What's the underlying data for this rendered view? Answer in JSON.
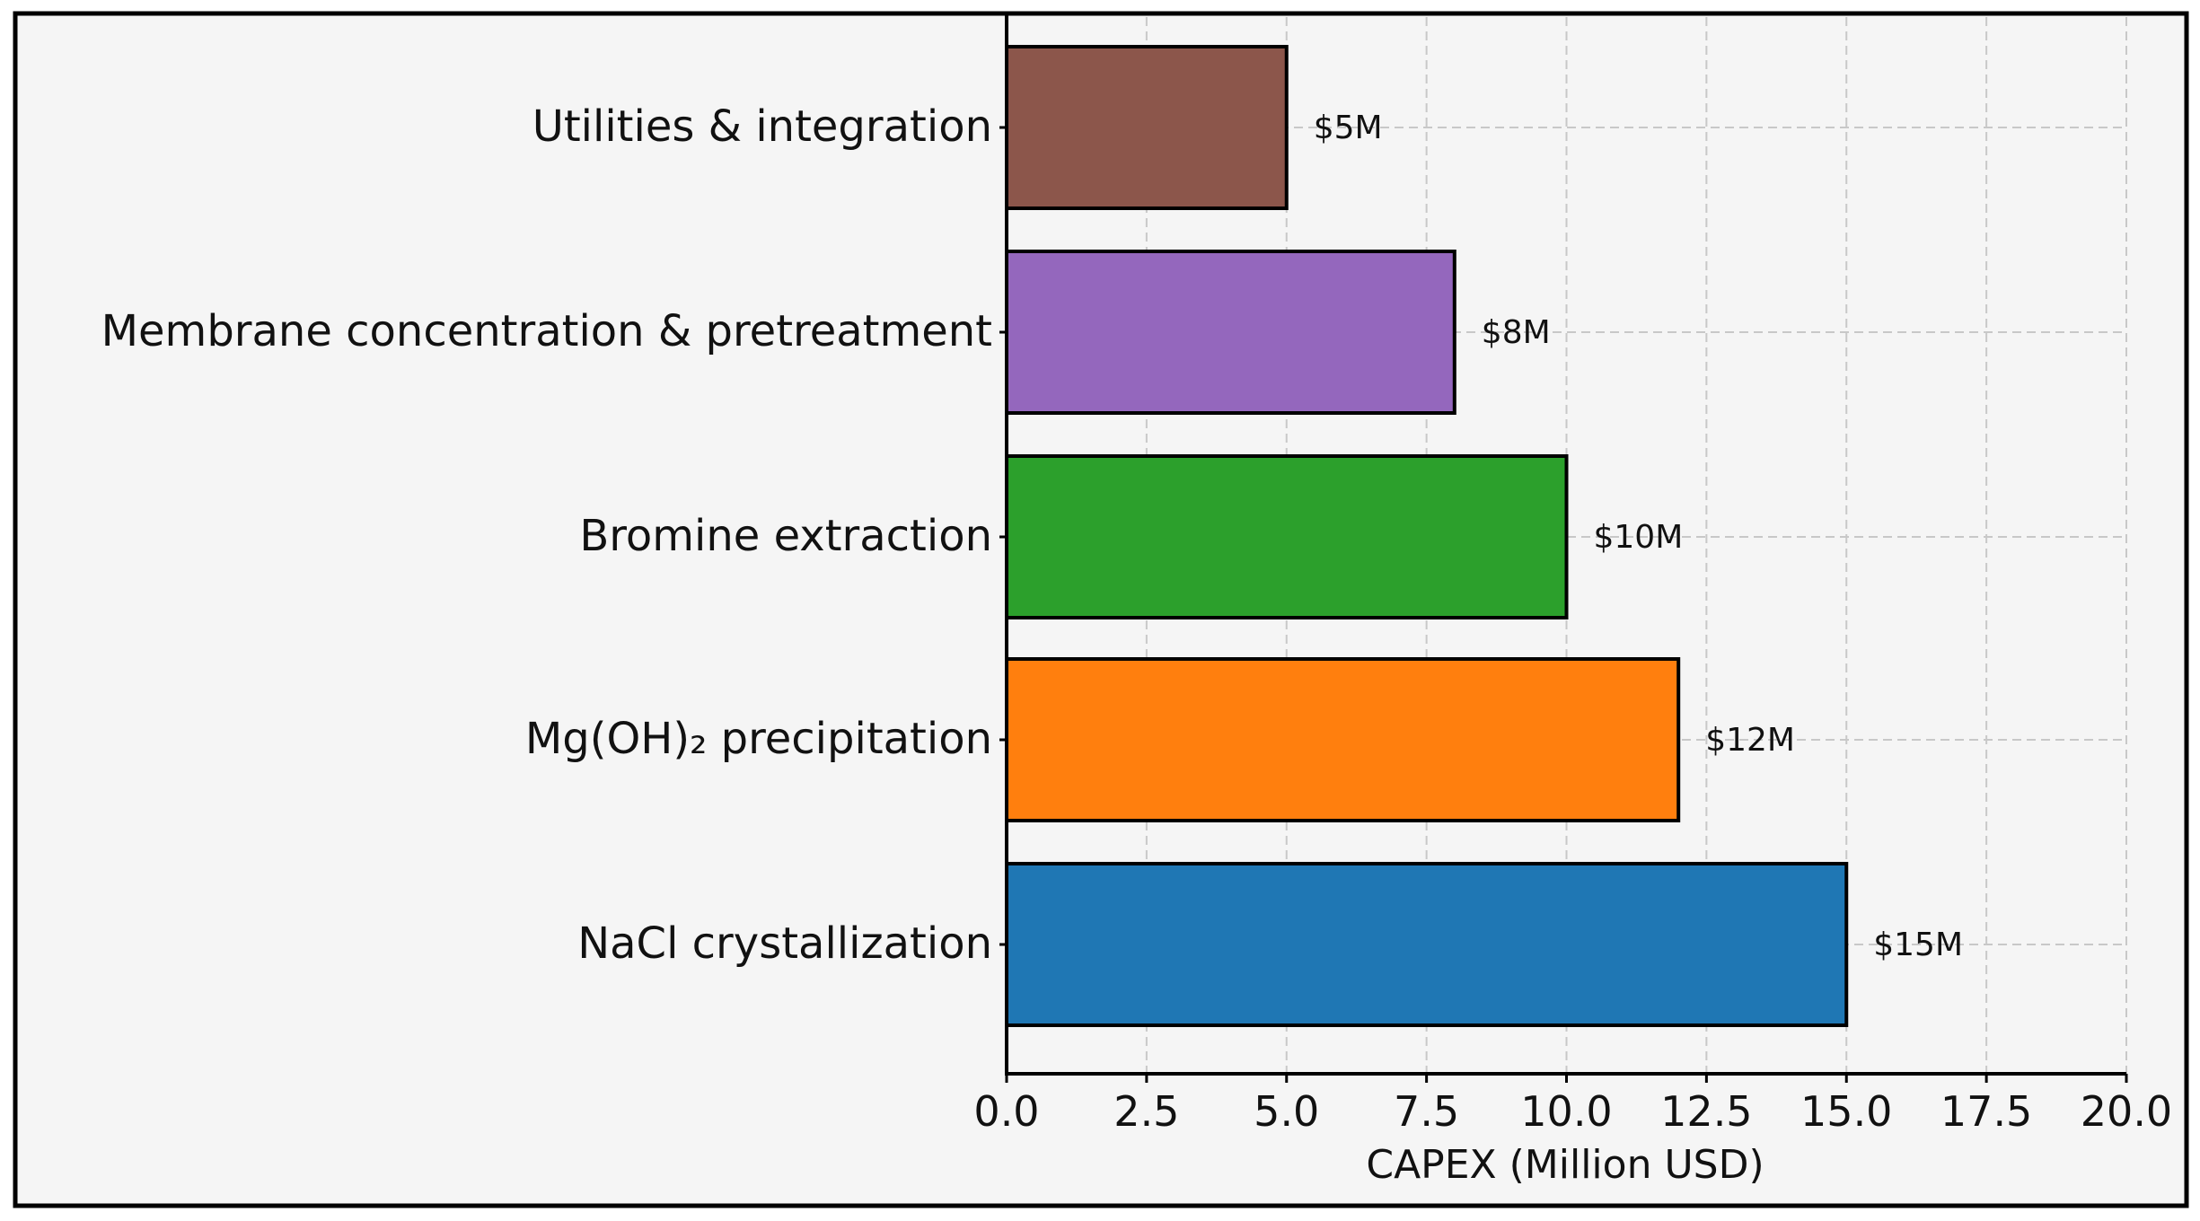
{
  "chart_data": {
    "type": "bar",
    "orientation": "horizontal",
    "categories": [
      "Utilities & integration",
      "Membrane concentration & pretreatment",
      "Bromine extraction",
      "Mg(OH)₂ precipitation",
      "NaCl crystallization"
    ],
    "values": [
      5,
      8,
      10,
      12,
      15
    ],
    "data_labels": [
      "$5M",
      "$8M",
      "$10M",
      "$12M",
      "$15M"
    ],
    "colors": [
      "#8c564b",
      "#9467bd",
      "#2ca02c",
      "#ff7f0e",
      "#1f77b4"
    ],
    "title": "",
    "xlabel": "CAPEX (Million USD)",
    "ylabel": "",
    "xlim": [
      0,
      20
    ],
    "xticks": [
      "0.0",
      "2.5",
      "5.0",
      "7.5",
      "10.0",
      "12.5",
      "15.0",
      "17.5",
      "20.0"
    ],
    "grid": true,
    "grid_style": "dashed",
    "legend": "none"
  }
}
